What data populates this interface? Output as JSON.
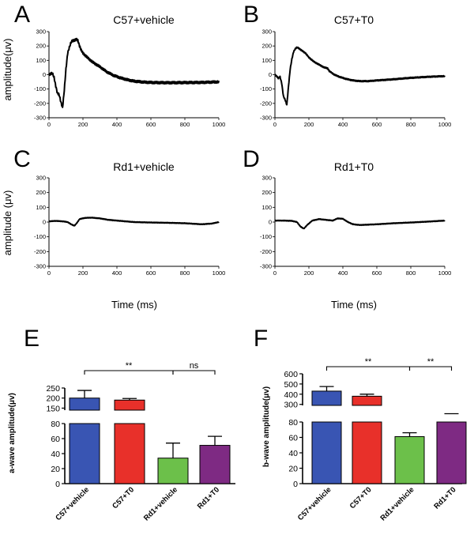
{
  "shared_labels": {
    "trace_ylabel_top": "amplitude(μv)",
    "trace_ylabel_bottom": "amplitude  (μv)",
    "trace_xlabel": "Time (ms)"
  },
  "chart_data": [
    {
      "id": "A",
      "type": "line",
      "letter": "A",
      "title": "C57+vehicle",
      "xlim": [
        0,
        1000
      ],
      "ylim": [
        -300,
        300
      ],
      "xticks": [
        0,
        200,
        400,
        600,
        800,
        1000
      ],
      "yticks": [
        300,
        200,
        100,
        0,
        -100,
        -200,
        -300
      ],
      "series": [
        {
          "name": "C57+vehicle",
          "ripple": 8,
          "points": [
            [
              0,
              0
            ],
            [
              10,
              8
            ],
            [
              20,
              10
            ],
            [
              30,
              -20
            ],
            [
              40,
              -80
            ],
            [
              50,
              -130
            ],
            [
              60,
              -140
            ],
            [
              70,
              -190
            ],
            [
              80,
              -230
            ],
            [
              90,
              -110
            ],
            [
              100,
              40
            ],
            [
              110,
              150
            ],
            [
              120,
              190
            ],
            [
              130,
              225
            ],
            [
              140,
              240
            ],
            [
              150,
              238
            ],
            [
              160,
              246
            ],
            [
              170,
              238
            ],
            [
              180,
              200
            ],
            [
              190,
              170
            ],
            [
              200,
              150
            ],
            [
              230,
              115
            ],
            [
              260,
              85
            ],
            [
              300,
              55
            ],
            [
              340,
              20
            ],
            [
              380,
              -5
            ],
            [
              420,
              -22
            ],
            [
              460,
              -35
            ],
            [
              500,
              -45
            ],
            [
              560,
              -52
            ],
            [
              620,
              -55
            ],
            [
              700,
              -56
            ],
            [
              800,
              -55
            ],
            [
              900,
              -54
            ],
            [
              1000,
              -50
            ]
          ]
        }
      ]
    },
    {
      "id": "B",
      "type": "line",
      "letter": "B",
      "title": "C57+T0",
      "xlim": [
        0,
        1000
      ],
      "ylim": [
        -300,
        300
      ],
      "xticks": [
        0,
        200,
        400,
        600,
        800,
        1000
      ],
      "yticks": [
        300,
        200,
        100,
        0,
        -100,
        -200,
        -300
      ],
      "series": [
        {
          "name": "C57+T0",
          "ripple": 4,
          "points": [
            [
              0,
              0
            ],
            [
              10,
              -10
            ],
            [
              20,
              -25
            ],
            [
              30,
              -15
            ],
            [
              40,
              -60
            ],
            [
              50,
              -150
            ],
            [
              60,
              -175
            ],
            [
              70,
              -210
            ],
            [
              80,
              -80
            ],
            [
              90,
              40
            ],
            [
              100,
              110
            ],
            [
              110,
              160
            ],
            [
              120,
              180
            ],
            [
              130,
              190
            ],
            [
              140,
              185
            ],
            [
              150,
              175
            ],
            [
              180,
              150
            ],
            [
              200,
              120
            ],
            [
              230,
              90
            ],
            [
              260,
              70
            ],
            [
              290,
              50
            ],
            [
              310,
              45
            ],
            [
              320,
              25
            ],
            [
              350,
              0
            ],
            [
              380,
              -15
            ],
            [
              420,
              -30
            ],
            [
              460,
              -40
            ],
            [
              500,
              -45
            ],
            [
              550,
              -45
            ],
            [
              600,
              -40
            ],
            [
              700,
              -32
            ],
            [
              800,
              -22
            ],
            [
              900,
              -15
            ],
            [
              1000,
              -10
            ]
          ]
        }
      ]
    },
    {
      "id": "C",
      "type": "line",
      "letter": "C",
      "title": "Rd1+vehicle",
      "xlim": [
        0,
        1000
      ],
      "ylim": [
        -300,
        300
      ],
      "xticks": [
        0,
        200,
        400,
        600,
        800,
        1000
      ],
      "yticks": [
        300,
        200,
        100,
        0,
        -100,
        -200,
        -300
      ],
      "series": [
        {
          "name": "Rd1+vehicle",
          "ripple": 2,
          "points": [
            [
              0,
              5
            ],
            [
              40,
              8
            ],
            [
              80,
              5
            ],
            [
              110,
              0
            ],
            [
              130,
              -15
            ],
            [
              150,
              -25
            ],
            [
              165,
              -5
            ],
            [
              180,
              20
            ],
            [
              210,
              28
            ],
            [
              250,
              30
            ],
            [
              300,
              25
            ],
            [
              350,
              15
            ],
            [
              400,
              10
            ],
            [
              450,
              5
            ],
            [
              500,
              0
            ],
            [
              600,
              -3
            ],
            [
              700,
              -5
            ],
            [
              800,
              -8
            ],
            [
              900,
              -15
            ],
            [
              960,
              -10
            ],
            [
              1000,
              0
            ]
          ]
        }
      ]
    },
    {
      "id": "D",
      "type": "line",
      "letter": "D",
      "title": "Rd1+T0",
      "xlim": [
        0,
        1000
      ],
      "ylim": [
        -300,
        300
      ],
      "xticks": [
        0,
        200,
        400,
        600,
        800,
        1000
      ],
      "yticks": [
        300,
        200,
        100,
        0,
        -100,
        -200,
        -300
      ],
      "series": [
        {
          "name": "Rd1+T0",
          "ripple": 2,
          "points": [
            [
              0,
              10
            ],
            [
              50,
              10
            ],
            [
              100,
              8
            ],
            [
              130,
              0
            ],
            [
              150,
              -30
            ],
            [
              170,
              -45
            ],
            [
              190,
              -20
            ],
            [
              220,
              10
            ],
            [
              260,
              20
            ],
            [
              300,
              15
            ],
            [
              340,
              10
            ],
            [
              370,
              25
            ],
            [
              400,
              22
            ],
            [
              430,
              0
            ],
            [
              460,
              -15
            ],
            [
              500,
              -20
            ],
            [
              600,
              -15
            ],
            [
              700,
              -8
            ],
            [
              800,
              -3
            ],
            [
              900,
              3
            ],
            [
              1000,
              10
            ]
          ]
        }
      ]
    },
    {
      "id": "E",
      "type": "bar",
      "letter": "E",
      "ylabel": "a-wave amplitude(μv)",
      "categories": [
        "C57+vehicle",
        "C57+T0",
        "Rd1+vehicle",
        "Rd1+T0"
      ],
      "values": [
        200,
        190,
        34,
        51
      ],
      "errors": [
        38,
        8,
        20,
        12
      ],
      "colors": [
        "#3955b3",
        "#e8302a",
        "#6cc04a",
        "#7e2a83"
      ],
      "lower_ylim": [
        0,
        80
      ],
      "lower_ticks": [
        0,
        20,
        40,
        60,
        80
      ],
      "upper_ylim": [
        140,
        250
      ],
      "upper_ticks": [
        150,
        200,
        250
      ],
      "significance": [
        {
          "from": 0,
          "to": 2,
          "label": "**"
        },
        {
          "from": 2,
          "to": 3,
          "label": "ns"
        }
      ]
    },
    {
      "id": "F",
      "type": "bar",
      "letter": "F",
      "ylabel": "b-wave  amplitude(μv)",
      "categories": [
        "C57+vehicle",
        "C57+T0",
        "Rd1+vehicle",
        "Rd1+T0"
      ],
      "values": [
        430,
        380,
        61,
        81
      ],
      "errors": [
        45,
        20,
        5,
        2
      ],
      "colors": [
        "#3955b3",
        "#e8302a",
        "#6cc04a",
        "#7e2a83"
      ],
      "lower_ylim": [
        0,
        80
      ],
      "lower_ticks": [
        0,
        20,
        40,
        60,
        80
      ],
      "upper_ylim": [
        290,
        600
      ],
      "upper_ticks": [
        300,
        400,
        500,
        600
      ],
      "significance": [
        {
          "from": 0,
          "to": 2,
          "label": "**"
        },
        {
          "from": 2,
          "to": 3,
          "label": "**"
        }
      ]
    }
  ]
}
